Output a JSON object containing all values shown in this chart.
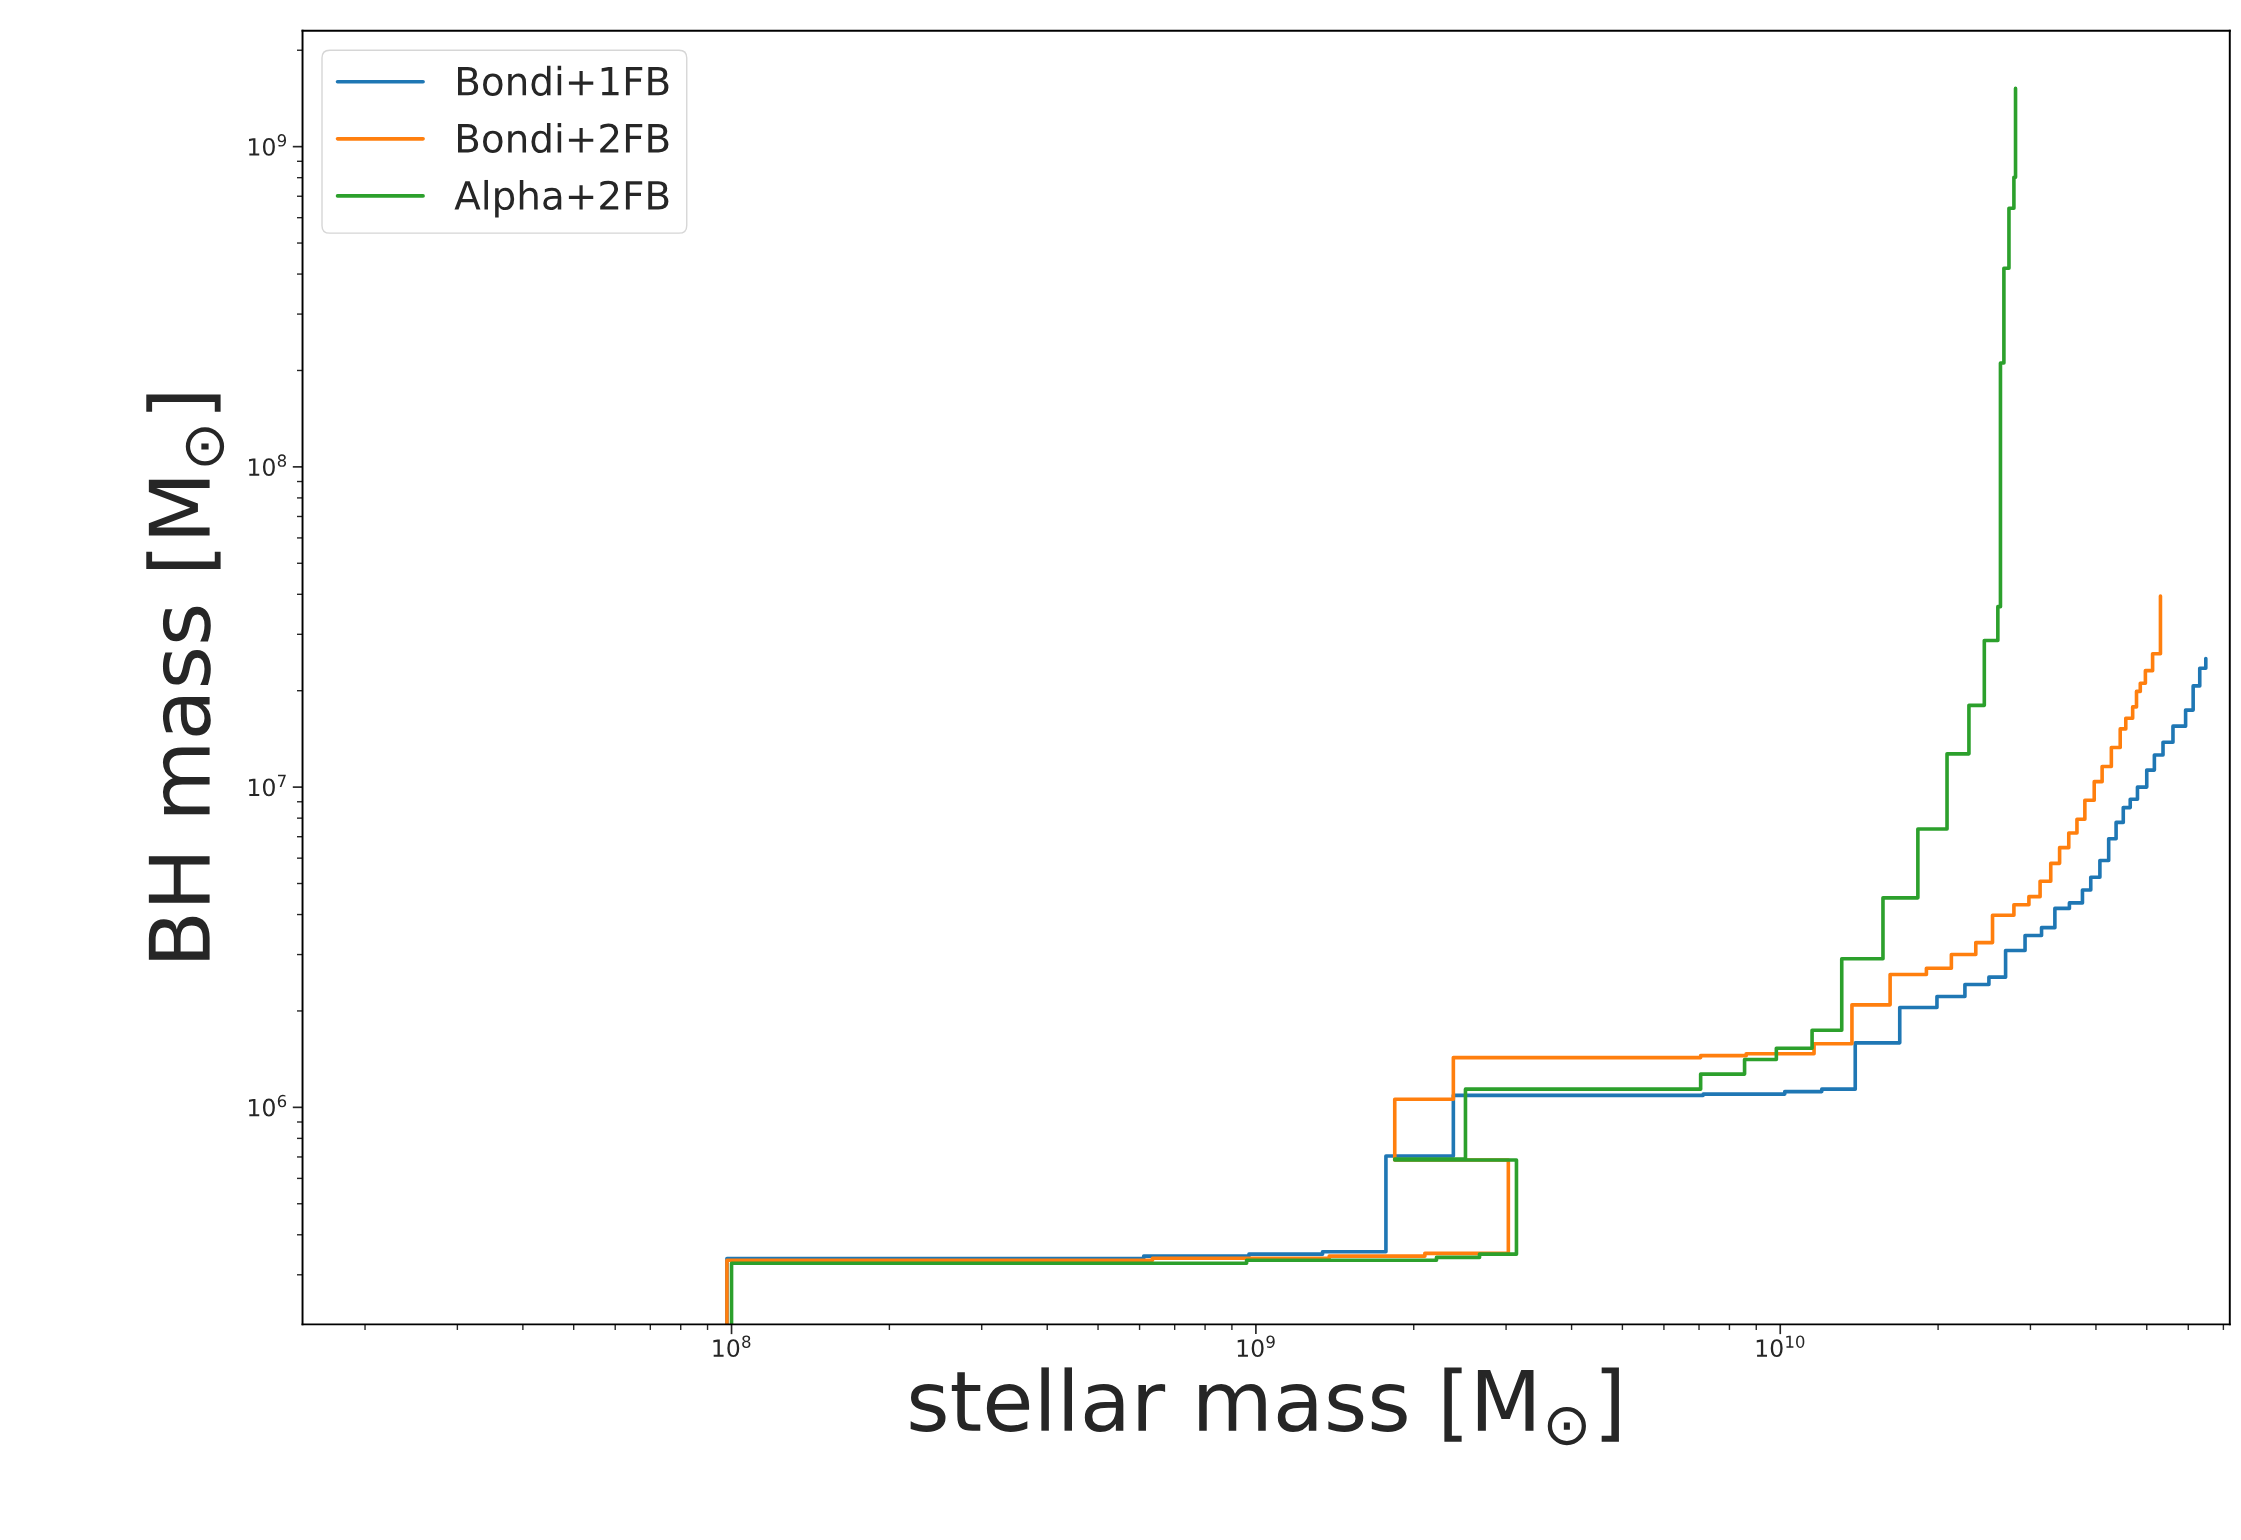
{
  "chart_data": {
    "type": "step",
    "xlabel": "stellar mass [M$_{⊙}$]",
    "ylabel": "BH mass [M$_{⊙}$]",
    "log": "xy",
    "legend": "top left",
    "grid": false,
    "xlim": [
      15200000.0,
      72000000000.0
    ],
    "ylim": [
      210000.0,
      2300000000.0
    ],
    "xticks": [
      {
        "value": 100000000.0,
        "label": "10$^{8}$"
      },
      {
        "value": 1000000000.0,
        "label": "10$^{9}$"
      },
      {
        "value": 10000000000.0,
        "label": "10$^{10}$"
      }
    ],
    "yticks": [
      {
        "value": 1000000.0,
        "label": "10$^{6}$"
      },
      {
        "value": 10000000.0,
        "label": "10$^{7}$"
      },
      {
        "value": 100000000.0,
        "label": "10$^{8}$"
      },
      {
        "value": 1000000000.0,
        "label": "10$^{9}$"
      }
    ],
    "series": [
      {
        "name": "Bondi+1FB",
        "color": "#1f77b4",
        "x": [
          98000000.0,
          98000000.0,
          611000000.0,
          970000000.0,
          1340000000.0,
          1770000000.0,
          2380000000.0,
          7130000000.0,
          10200000000.0,
          12000000000.0,
          13900000000.0,
          16900000000.0,
          19900000000.0,
          22500000000.0,
          25000000000.0,
          26900000000.0,
          29300000000.0,
          31500000000.0,
          33400000000.0,
          35600000000.0,
          37700000000.0,
          39100000000.0,
          40700000000.0,
          42300000000.0,
          43700000000.0,
          45100000000.0,
          46500000000.0,
          48000000000.0,
          50000000000.0,
          51700000000.0,
          53700000000.0,
          56100000000.0,
          59300000000.0,
          61300000000.0,
          63100000000.0,
          64800000000.0
        ],
        "values": [
          210000.0,
          337000.0,
          343000.0,
          348000.0,
          354000.0,
          705000.0,
          1090000.0,
          1100000.0,
          1120000.0,
          1140000.0,
          1590000.0,
          2050000.0,
          2220000.0,
          2420000.0,
          2550000.0,
          3090000.0,
          3440000.0,
          3640000.0,
          4180000.0,
          4350000.0,
          4770000.0,
          5230000.0,
          5900000.0,
          6900000.0,
          7760000.0,
          8630000.0,
          9160000.0,
          10000000.0,
          11300000.0,
          12600000.0,
          13800000.0,
          15500000.0,
          17400000.0,
          20700000.0,
          23500000.0,
          25200000.0
        ]
      },
      {
        "name": "Bondi+2FB",
        "color": "#ff7f0e",
        "x": [
          98000000.0,
          98000000.0,
          635000000.0,
          1380000000.0,
          2100000000.0,
          3030000000.0,
          1840000000.0,
          2380000000.0,
          7050000000.0,
          8610000000.0,
          11600000000.0,
          13700000000.0,
          16200000000.0,
          19000000000.0,
          21200000000.0,
          23600000000.0,
          25400000000.0,
          27900000000.0,
          29800000000.0,
          31300000000.0,
          32800000000.0,
          34100000000.0,
          35500000000.0,
          36800000000.0,
          38100000000.0,
          39700000000.0,
          41100000000.0,
          42800000000.0,
          44500000000.0,
          45600000000.0,
          47000000000.0,
          47800000000.0,
          48600000000.0,
          49700000000.0,
          51300000000.0,
          53100000000.0,
          53100000000.0
        ],
        "values": [
          210000.0,
          333000.0,
          338000.0,
          343000.0,
          350000.0,
          685000.0,
          1060000.0,
          1430000.0,
          1450000.0,
          1470000.0,
          1580000.0,
          2090000.0,
          2600000.0,
          2720000.0,
          3000000.0,
          3270000.0,
          3980000.0,
          4290000.0,
          4550000.0,
          5080000.0,
          5780000.0,
          6470000.0,
          7190000.0,
          7940000.0,
          9100000.0,
          10400000.0,
          11600000.0,
          13300000.0,
          15200000.0,
          16400000.0,
          17800000.0,
          19900000.0,
          21100000.0,
          23100000.0,
          26100000.0,
          29300000.0,
          39500000.0
        ]
      },
      {
        "name": "Alpha+2FB",
        "color": "#2ca02c",
        "x": [
          100000000.0,
          100000000.0,
          960000000.0,
          2210000000.0,
          2670000000.0,
          3140000000.0,
          1840000000.0,
          2510000000.0,
          7050000000.0,
          8550000000.0,
          9830000000.0,
          11500000000.0,
          13100000000.0,
          15700000000.0,
          18300000000.0,
          20800000000.0,
          22900000000.0,
          24500000000.0,
          26000000000.0,
          26300000000.0,
          26700000000.0,
          27300000000.0,
          27900000000.0,
          28100000000.0,
          28100000000.0
        ],
        "values": [
          210000.0,
          326000.0,
          333000.0,
          340000.0,
          348000.0,
          685000.0,
          690000.0,
          1140000.0,
          1270000.0,
          1410000.0,
          1530000.0,
          1740000.0,
          2910000.0,
          4510000.0,
          7400000.0,
          12700000.0,
          18000000.0,
          28700000.0,
          36600000.0,
          211000000.0,
          417000000.0,
          642000000.0,
          802000000.0,
          948000000.0,
          1520000000.0
        ]
      }
    ]
  }
}
